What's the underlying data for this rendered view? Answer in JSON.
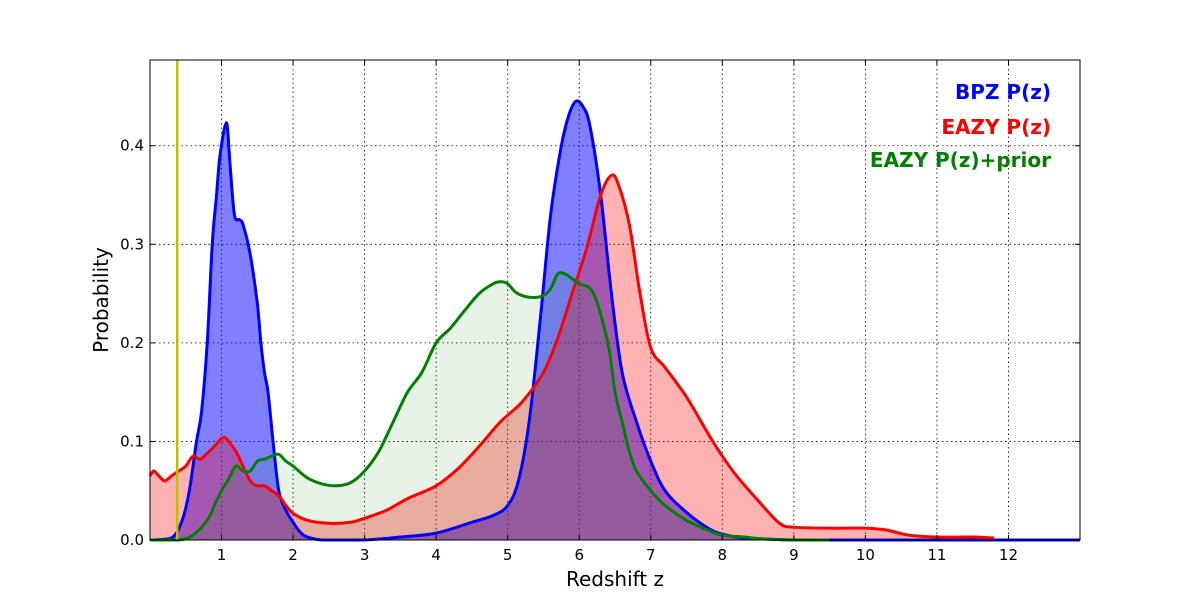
{
  "chart_data": {
    "type": "area",
    "title": "",
    "xlabel": "Redshift z",
    "ylabel": "Probability",
    "xlim": [
      0,
      13
    ],
    "ylim": [
      0,
      0.487
    ],
    "grid": true,
    "legend_position": "top-right",
    "xticks": [
      1,
      2,
      3,
      4,
      5,
      6,
      7,
      8,
      9,
      10,
      11,
      12
    ],
    "xtick_labels": [
      "1",
      "2",
      "3",
      "4",
      "5",
      "6",
      "7",
      "8",
      "9",
      "10",
      "11",
      "12"
    ],
    "yticks": [
      0.0,
      0.1,
      0.2,
      0.3,
      0.4
    ],
    "ytick_labels": [
      "0.0",
      "0.1",
      "0.2",
      "0.3",
      "0.4"
    ],
    "vline": {
      "x": 0.38,
      "color": "#bfbf00"
    },
    "series": [
      {
        "name": "BPZ P(z)",
        "color": "#0000ff",
        "fill": "#0000ff",
        "fill_opacity": 0.5,
        "x": [
          0.0,
          0.3,
          0.45,
          0.55,
          0.65,
          0.72,
          0.8,
          0.87,
          0.93,
          0.97,
          1.02,
          1.05,
          1.08,
          1.12,
          1.18,
          1.25,
          1.3,
          1.4,
          1.5,
          1.55,
          1.6,
          1.65,
          1.72,
          1.8,
          1.9,
          2.0,
          2.1,
          2.2,
          2.4,
          2.6,
          3.0,
          3.5,
          4.0,
          4.5,
          4.8,
          5.0,
          5.15,
          5.3,
          5.45,
          5.6,
          5.75,
          5.85,
          5.95,
          6.05,
          6.15,
          6.3,
          6.45,
          6.6,
          6.8,
          7.0,
          7.2,
          7.5,
          7.8,
          8.0,
          8.3,
          8.6,
          9.0,
          9.5,
          10.0,
          11.0,
          12.0,
          13.0
        ],
        "y": [
          0.0,
          0.002,
          0.02,
          0.05,
          0.1,
          0.13,
          0.2,
          0.3,
          0.35,
          0.385,
          0.41,
          0.42,
          0.42,
          0.38,
          0.33,
          0.325,
          0.32,
          0.29,
          0.24,
          0.2,
          0.17,
          0.15,
          0.1,
          0.05,
          0.03,
          0.018,
          0.008,
          0.003,
          0.0,
          0.0,
          0.0,
          0.003,
          0.007,
          0.018,
          0.025,
          0.035,
          0.06,
          0.12,
          0.22,
          0.33,
          0.4,
          0.43,
          0.445,
          0.44,
          0.42,
          0.35,
          0.25,
          0.17,
          0.12,
          0.08,
          0.05,
          0.028,
          0.012,
          0.006,
          0.002,
          0.001,
          0.0,
          0.0,
          0.0,
          0.0,
          0.0,
          0.0
        ]
      },
      {
        "name": "EAZY P(z)",
        "color": "#ff0000",
        "fill": "#ff0000",
        "fill_opacity": 0.3,
        "x": [
          0.0,
          0.05,
          0.1,
          0.2,
          0.3,
          0.4,
          0.5,
          0.6,
          0.7,
          0.8,
          0.9,
          1.0,
          1.05,
          1.1,
          1.2,
          1.3,
          1.4,
          1.5,
          1.6,
          1.7,
          1.8,
          1.9,
          2.0,
          2.2,
          2.5,
          2.8,
          3.0,
          3.3,
          3.6,
          4.0,
          4.3,
          4.6,
          4.9,
          5.2,
          5.5,
          5.7,
          5.9,
          6.1,
          6.3,
          6.45,
          6.55,
          6.7,
          6.85,
          7.0,
          7.2,
          7.5,
          7.8,
          8.0,
          8.2,
          8.5,
          8.8,
          9.0,
          9.5,
          10.0,
          10.3,
          10.6,
          11.0,
          11.5,
          11.8
        ],
        "y": [
          0.065,
          0.07,
          0.067,
          0.06,
          0.065,
          0.07,
          0.075,
          0.085,
          0.082,
          0.088,
          0.095,
          0.103,
          0.104,
          0.1,
          0.09,
          0.075,
          0.06,
          0.055,
          0.055,
          0.05,
          0.045,
          0.035,
          0.027,
          0.02,
          0.017,
          0.018,
          0.022,
          0.03,
          0.042,
          0.055,
          0.072,
          0.095,
          0.12,
          0.14,
          0.17,
          0.205,
          0.25,
          0.295,
          0.35,
          0.37,
          0.36,
          0.32,
          0.25,
          0.195,
          0.175,
          0.145,
          0.108,
          0.085,
          0.065,
          0.04,
          0.017,
          0.013,
          0.012,
          0.012,
          0.01,
          0.005,
          0.003,
          0.003,
          0.002
        ]
      },
      {
        "name": "EAZY P(z)+prior",
        "color": "#008000",
        "fill": "#008000",
        "fill_opacity": 0.1,
        "x": [
          0.0,
          0.4,
          0.6,
          0.8,
          0.9,
          1.0,
          1.1,
          1.2,
          1.3,
          1.4,
          1.5,
          1.6,
          1.7,
          1.8,
          1.9,
          2.0,
          2.2,
          2.4,
          2.6,
          2.8,
          3.0,
          3.2,
          3.4,
          3.6,
          3.8,
          4.0,
          4.2,
          4.4,
          4.6,
          4.8,
          4.9,
          5.0,
          5.1,
          5.2,
          5.35,
          5.5,
          5.6,
          5.7,
          5.8,
          5.9,
          6.0,
          6.2,
          6.4,
          6.5,
          6.6,
          6.7,
          6.8,
          7.0,
          7.2,
          7.5,
          7.8,
          8.0,
          8.3,
          8.6,
          9.0,
          9.5
        ],
        "y": [
          0.0,
          0.0,
          0.005,
          0.02,
          0.035,
          0.05,
          0.062,
          0.075,
          0.07,
          0.07,
          0.08,
          0.082,
          0.085,
          0.087,
          0.08,
          0.075,
          0.063,
          0.057,
          0.055,
          0.058,
          0.07,
          0.09,
          0.12,
          0.15,
          0.17,
          0.2,
          0.215,
          0.233,
          0.25,
          0.26,
          0.262,
          0.26,
          0.252,
          0.248,
          0.246,
          0.248,
          0.255,
          0.27,
          0.27,
          0.265,
          0.26,
          0.25,
          0.2,
          0.15,
          0.12,
          0.09,
          0.07,
          0.05,
          0.035,
          0.02,
          0.01,
          0.005,
          0.003,
          0.001,
          0.0,
          0.0
        ]
      }
    ]
  }
}
